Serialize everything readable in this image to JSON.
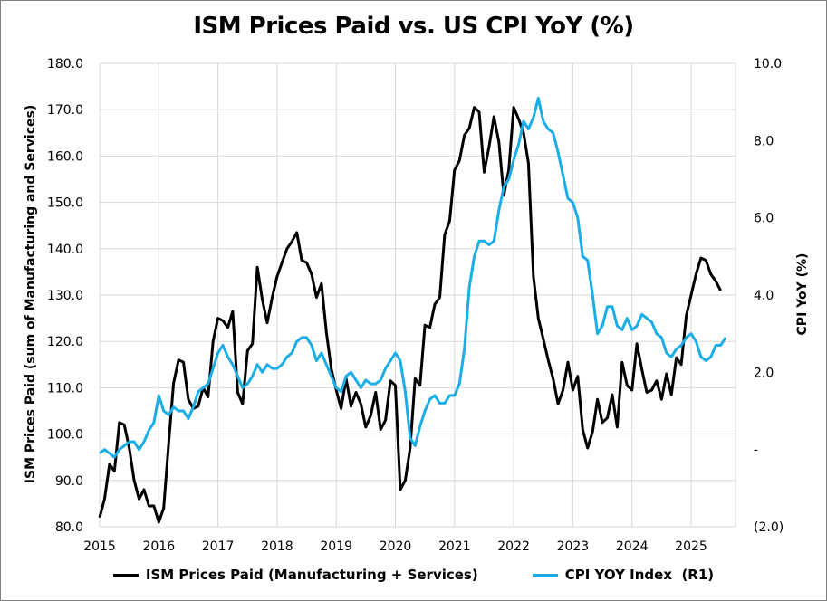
{
  "chart_data": {
    "type": "line",
    "title": "ISM Prices Paid vs. US CPI YoY (%)",
    "xlabel": "",
    "ylabel": "ISM Prices Paid (sum of Manufacturing and Services)",
    "y2label": "CPI YoY (%)",
    "x_start": "2015-01",
    "x_frequency": "monthly",
    "x_ticks": [
      "2015",
      "2016",
      "2017",
      "2018",
      "2019",
      "2020",
      "2021",
      "2022",
      "2023",
      "2024",
      "2025"
    ],
    "ylim": [
      80,
      180
    ],
    "y_ticks": [
      "180.0",
      "170.0",
      "160.0",
      "150.0",
      "140.0",
      "130.0",
      "120.0",
      "110.0",
      "100.0",
      "90.0",
      "80.0"
    ],
    "y2lim": [
      -2,
      10
    ],
    "y2_ticks": [
      "10.0",
      "8.0",
      "6.0",
      "4.0",
      "2.0",
      "-",
      "(2.0)"
    ],
    "grid": true,
    "legend_position": "bottom",
    "series": [
      {
        "name": "ISM Prices Paid (Manufacturing + Services)",
        "axis": "left",
        "color": "#000000",
        "values": [
          82,
          86,
          93.5,
          92,
          102.5,
          102,
          97,
          90,
          86,
          88,
          84.5,
          84.5,
          81,
          84,
          98,
          111,
          116,
          115.5,
          107.5,
          105.5,
          106,
          110,
          108,
          120,
          125,
          124.5,
          123,
          126.5,
          109,
          106.5,
          118,
          119.5,
          136,
          129,
          124,
          129.5,
          134,
          137,
          140,
          141.5,
          143.5,
          137.5,
          137,
          134.5,
          129.5,
          132.5,
          122,
          114,
          109.5,
          105.5,
          112,
          106,
          109,
          106.5,
          101.5,
          104,
          109,
          101,
          103,
          111.5,
          110.5,
          88,
          90,
          97,
          112,
          110.5,
          123.5,
          123,
          128,
          129.5,
          143,
          146,
          157,
          159,
          164.5,
          166,
          170.5,
          169.5,
          156.5,
          162,
          168.5,
          163,
          151.5,
          157,
          170.5,
          168,
          165,
          158.5,
          134,
          125,
          120.5,
          116,
          112,
          106.5,
          109.5,
          115.5,
          109.5,
          112.5,
          101,
          97,
          100.5,
          107.5,
          102.5,
          103.5,
          108.5,
          101.5,
          115.5,
          110.5,
          109.5,
          119.5,
          114,
          109,
          109.5,
          111.5,
          107.5,
          113,
          108.5,
          116.5,
          115,
          125.5,
          130,
          134.5,
          138,
          137.5,
          134.5,
          133,
          131
        ]
      },
      {
        "name": "CPI YOY Index  (R1)",
        "axis": "right",
        "color": "#1AADE6",
        "values": [
          -0.1,
          0,
          -0.1,
          -0.2,
          0,
          0.1,
          0.2,
          0.2,
          0,
          0.2,
          0.5,
          0.7,
          1.4,
          1.0,
          0.9,
          1.1,
          1.0,
          1.0,
          0.8,
          1.1,
          1.5,
          1.6,
          1.7,
          2.1,
          2.5,
          2.7,
          2.4,
          2.2,
          1.9,
          1.6,
          1.7,
          1.9,
          2.2,
          2.0,
          2.2,
          2.1,
          2.1,
          2.2,
          2.4,
          2.5,
          2.8,
          2.9,
          2.9,
          2.7,
          2.3,
          2.5,
          2.2,
          1.9,
          1.6,
          1.5,
          1.9,
          2.0,
          1.8,
          1.6,
          1.8,
          1.7,
          1.7,
          1.8,
          2.1,
          2.3,
          2.5,
          2.3,
          1.5,
          0.3,
          0.1,
          0.6,
          1.0,
          1.3,
          1.4,
          1.2,
          1.2,
          1.4,
          1.4,
          1.7,
          2.6,
          4.2,
          5.0,
          5.4,
          5.4,
          5.3,
          5.4,
          6.2,
          6.8,
          7.0,
          7.5,
          7.9,
          8.5,
          8.3,
          8.6,
          9.1,
          8.5,
          8.3,
          8.2,
          7.7,
          7.1,
          6.5,
          6.4,
          6.0,
          5.0,
          4.9,
          4.0,
          3.0,
          3.2,
          3.7,
          3.7,
          3.2,
          3.1,
          3.4,
          3.1,
          3.2,
          3.5,
          3.4,
          3.3,
          3.0,
          2.9,
          2.5,
          2.4,
          2.6,
          2.7,
          2.9,
          3.0,
          2.8,
          2.4,
          2.3,
          2.4,
          2.7,
          2.7,
          2.9
        ]
      }
    ]
  },
  "legend": {
    "items": [
      {
        "label": "ISM Prices Paid (Manufacturing + Services)",
        "color": "#000000"
      },
      {
        "label": "CPI YOY Index  (R1)",
        "color": "#1AADE6"
      }
    ]
  }
}
